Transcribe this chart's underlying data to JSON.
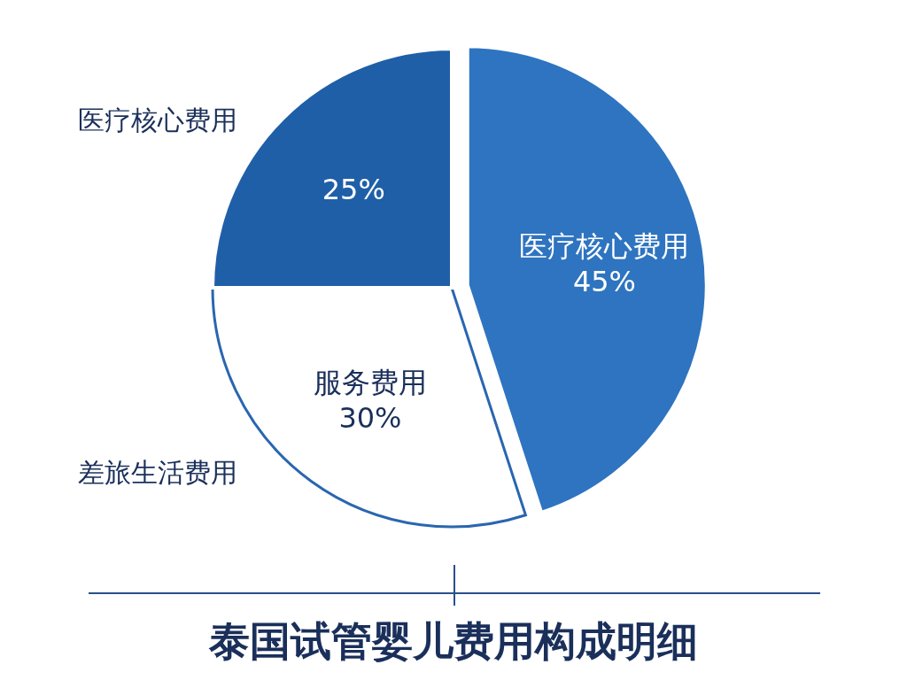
{
  "chart_data": {
    "type": "pie",
    "title": "泰国试管婴儿费用构成明细",
    "categories": [
      "医疗核心费用",
      "服务费用",
      null
    ],
    "values": [
      45,
      30,
      25
    ],
    "value_labels": [
      "45%",
      "30%",
      "25%"
    ],
    "colors": [
      "#2e74c0",
      "#ffffff",
      "#1f5fa8"
    ],
    "annotations": [
      "医疗核心费用",
      "差旅生活费用"
    ],
    "legend": false
  }
}
